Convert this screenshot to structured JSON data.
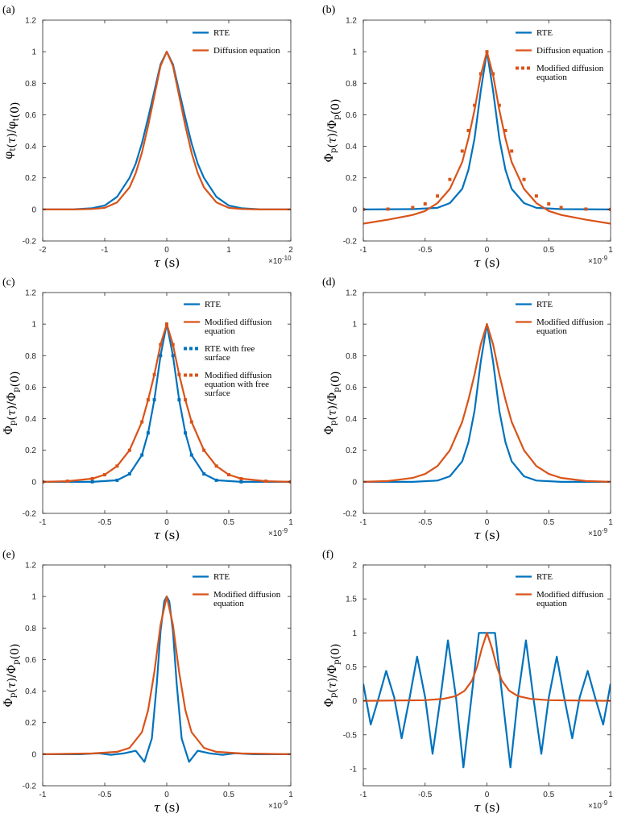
{
  "colors": {
    "blue": "#0072BD",
    "orange": "#D95319",
    "axis": "#262626"
  },
  "chart_data": [
    {
      "panel_label": "(a)",
      "type": "line",
      "xlabel": "τ (s)",
      "ylabel": "φt(τ)/φt(0)",
      "xlim": [
        -2,
        2
      ],
      "ylim": [
        -0.2,
        1.2
      ],
      "xticks": [
        -2,
        -1,
        0,
        1,
        2
      ],
      "xtick_labels": [
        "-2",
        "-1",
        "0",
        "1",
        "2"
      ],
      "yticks": [
        -0.2,
        0,
        0.2,
        0.4,
        0.6,
        0.8,
        1,
        1.2
      ],
      "ytick_labels": [
        "-0.2",
        "0",
        "0.2",
        "0.4",
        "0.6",
        "0.8",
        "1",
        "1.2"
      ],
      "x_multiplier": "×10-10",
      "series": [
        {
          "name": "RTE",
          "color": "blue",
          "style": "solid",
          "x": [
            -2,
            -1.5,
            -1.2,
            -1,
            -0.8,
            -0.6,
            -0.5,
            -0.4,
            -0.3,
            -0.2,
            -0.1,
            0,
            0.1,
            0.2,
            0.3,
            0.4,
            0.5,
            0.6,
            0.8,
            1,
            1.2,
            1.5,
            2
          ],
          "values": [
            0,
            0.001,
            0.008,
            0.025,
            0.08,
            0.2,
            0.29,
            0.42,
            0.58,
            0.75,
            0.92,
            1,
            0.92,
            0.75,
            0.58,
            0.42,
            0.29,
            0.2,
            0.08,
            0.025,
            0.008,
            0.001,
            0
          ]
        },
        {
          "name": "Diffusion equation",
          "color": "orange",
          "style": "solid",
          "x": [
            -2,
            -1.5,
            -1.2,
            -1,
            -0.8,
            -0.6,
            -0.5,
            -0.4,
            -0.3,
            -0.2,
            -0.1,
            0,
            0.1,
            0.2,
            0.3,
            0.4,
            0.5,
            0.6,
            0.8,
            1,
            1.2,
            1.5,
            2
          ],
          "values": [
            0,
            0,
            0.003,
            0.01,
            0.045,
            0.14,
            0.23,
            0.36,
            0.53,
            0.72,
            0.91,
            1,
            0.91,
            0.72,
            0.53,
            0.36,
            0.23,
            0.14,
            0.045,
            0.01,
            0.003,
            0,
            0
          ]
        }
      ]
    },
    {
      "panel_label": "(b)",
      "type": "line",
      "xlabel": "τ (s)",
      "ylabel": "Φp(τ)/Φp(0)",
      "xlim": [
        -1,
        1
      ],
      "ylim": [
        -0.2,
        1.2
      ],
      "xticks": [
        -1,
        -0.5,
        0,
        0.5,
        1
      ],
      "xtick_labels": [
        "-1",
        "-0.5",
        "0",
        "0.5",
        "1"
      ],
      "yticks": [
        -0.2,
        0,
        0.2,
        0.4,
        0.6,
        0.8,
        1,
        1.2
      ],
      "ytick_labels": [
        "-0.2",
        "0",
        "0.2",
        "0.4",
        "0.6",
        "0.8",
        "1",
        "1.2"
      ],
      "x_multiplier": "×10-9",
      "series": [
        {
          "name": "RTE",
          "color": "blue",
          "style": "solid",
          "x": [
            -1,
            -0.6,
            -0.4,
            -0.3,
            -0.2,
            -0.15,
            -0.1,
            -0.05,
            0,
            0.05,
            0.1,
            0.15,
            0.2,
            0.3,
            0.4,
            0.6,
            1
          ],
          "values": [
            0,
            0.002,
            0.01,
            0.04,
            0.13,
            0.25,
            0.45,
            0.75,
            1,
            0.75,
            0.45,
            0.25,
            0.13,
            0.04,
            0.01,
            0.002,
            0
          ]
        },
        {
          "name": "Diffusion equation",
          "color": "orange",
          "style": "solid",
          "x": [
            -1,
            -0.8,
            -0.6,
            -0.5,
            -0.4,
            -0.3,
            -0.2,
            -0.15,
            -0.1,
            -0.05,
            0,
            0.05,
            0.1,
            0.15,
            0.2,
            0.3,
            0.4,
            0.5,
            0.6,
            0.8,
            1
          ],
          "values": [
            -0.09,
            -0.065,
            -0.035,
            -0.01,
            0.04,
            0.13,
            0.3,
            0.45,
            0.63,
            0.85,
            1,
            0.85,
            0.63,
            0.45,
            0.3,
            0.13,
            0.04,
            -0.01,
            -0.035,
            -0.065,
            -0.09
          ]
        },
        {
          "name": "Modified diffusion equation",
          "color": "orange",
          "style": "dotted",
          "x": [
            -1,
            -0.8,
            -0.6,
            -0.5,
            -0.4,
            -0.3,
            -0.2,
            -0.15,
            -0.1,
            -0.05,
            0,
            0.05,
            0.1,
            0.15,
            0.2,
            0.3,
            0.4,
            0.5,
            0.6,
            0.8,
            1
          ],
          "values": [
            0,
            0.002,
            0.012,
            0.035,
            0.085,
            0.19,
            0.37,
            0.5,
            0.66,
            0.86,
            1,
            0.86,
            0.66,
            0.5,
            0.37,
            0.19,
            0.085,
            0.035,
            0.012,
            0.002,
            0
          ]
        }
      ]
    },
    {
      "panel_label": "(c)",
      "type": "line",
      "xlabel": "τ (s)",
      "ylabel": "Φp(τ)/Φp(0)",
      "xlim": [
        -1,
        1
      ],
      "ylim": [
        -0.2,
        1.2
      ],
      "xticks": [
        -1,
        -0.5,
        0,
        0.5,
        1
      ],
      "xtick_labels": [
        "-1",
        "-0.5",
        "0",
        "0.5",
        "1"
      ],
      "yticks": [
        -0.2,
        0,
        0.2,
        0.4,
        0.6,
        0.8,
        1,
        1.2
      ],
      "ytick_labels": [
        "-0.2",
        "0",
        "0.2",
        "0.4",
        "0.6",
        "0.8",
        "1",
        "1.2"
      ],
      "x_multiplier": "×10-9",
      "series": [
        {
          "name": "RTE",
          "color": "blue",
          "style": "solid",
          "x": [
            -1,
            -0.6,
            -0.4,
            -0.3,
            -0.2,
            -0.15,
            -0.1,
            -0.05,
            0,
            0.05,
            0.1,
            0.15,
            0.2,
            0.3,
            0.4,
            0.6,
            1
          ],
          "values": [
            0,
            0,
            0.01,
            0.05,
            0.17,
            0.31,
            0.52,
            0.8,
            1,
            0.8,
            0.52,
            0.31,
            0.17,
            0.05,
            0.01,
            0,
            0
          ]
        },
        {
          "name": "Modified diffusion equation",
          "color": "orange",
          "style": "solid",
          "x": [
            -1,
            -0.8,
            -0.6,
            -0.5,
            -0.4,
            -0.3,
            -0.2,
            -0.15,
            -0.1,
            -0.05,
            0,
            0.05,
            0.1,
            0.15,
            0.2,
            0.3,
            0.4,
            0.5,
            0.6,
            0.8,
            1
          ],
          "values": [
            0,
            0.004,
            0.02,
            0.045,
            0.1,
            0.2,
            0.38,
            0.52,
            0.68,
            0.87,
            1,
            0.87,
            0.68,
            0.52,
            0.38,
            0.2,
            0.1,
            0.045,
            0.02,
            0.004,
            0
          ]
        },
        {
          "name": "RTE with free surface",
          "color": "blue",
          "style": "dotted",
          "x": [
            -1,
            -0.6,
            -0.4,
            -0.3,
            -0.2,
            -0.15,
            -0.1,
            -0.05,
            0,
            0.05,
            0.1,
            0.15,
            0.2,
            0.3,
            0.4,
            0.6,
            1
          ],
          "values": [
            0,
            0,
            0.01,
            0.05,
            0.17,
            0.31,
            0.52,
            0.8,
            1,
            0.8,
            0.52,
            0.31,
            0.17,
            0.05,
            0.01,
            0,
            0
          ]
        },
        {
          "name": "Modified diffusion equation with free surface",
          "color": "orange",
          "style": "dotted",
          "x": [
            -1,
            -0.8,
            -0.6,
            -0.5,
            -0.4,
            -0.3,
            -0.2,
            -0.15,
            -0.1,
            -0.05,
            0,
            0.05,
            0.1,
            0.15,
            0.2,
            0.3,
            0.4,
            0.5,
            0.6,
            0.8,
            1
          ],
          "values": [
            0,
            0.004,
            0.02,
            0.045,
            0.1,
            0.2,
            0.38,
            0.52,
            0.68,
            0.87,
            1,
            0.87,
            0.68,
            0.52,
            0.38,
            0.2,
            0.1,
            0.045,
            0.02,
            0.004,
            0
          ]
        }
      ]
    },
    {
      "panel_label": "(d)",
      "type": "line",
      "xlabel": "τ (s)",
      "ylabel": "Φp(τ)/Φp(0)",
      "xlim": [
        -1,
        1
      ],
      "ylim": [
        -0.2,
        1.2
      ],
      "xticks": [
        -1,
        -0.5,
        0,
        0.5,
        1
      ],
      "xtick_labels": [
        "-1",
        "-0.5",
        "0",
        "0.5",
        "1"
      ],
      "yticks": [
        -0.2,
        0,
        0.2,
        0.4,
        0.6,
        0.8,
        1,
        1.2
      ],
      "ytick_labels": [
        "-0.2",
        "0",
        "0.2",
        "0.4",
        "0.6",
        "0.8",
        "1",
        "1.2"
      ],
      "x_multiplier": "×10-9",
      "series": [
        {
          "name": "RTE",
          "color": "blue",
          "style": "solid",
          "x": [
            -1,
            -0.6,
            -0.4,
            -0.3,
            -0.2,
            -0.15,
            -0.1,
            -0.05,
            0,
            0.05,
            0.1,
            0.15,
            0.2,
            0.3,
            0.4,
            0.6,
            1
          ],
          "values": [
            0,
            0,
            0.008,
            0.035,
            0.13,
            0.25,
            0.45,
            0.76,
            1,
            0.76,
            0.45,
            0.25,
            0.13,
            0.035,
            0.008,
            0,
            0
          ]
        },
        {
          "name": "Modified diffusion equation",
          "color": "orange",
          "style": "solid",
          "x": [
            -1,
            -0.8,
            -0.6,
            -0.5,
            -0.4,
            -0.3,
            -0.2,
            -0.15,
            -0.1,
            -0.05,
            0,
            0.05,
            0.1,
            0.15,
            0.2,
            0.3,
            0.4,
            0.5,
            0.6,
            0.8,
            1
          ],
          "values": [
            0,
            0.005,
            0.025,
            0.05,
            0.1,
            0.2,
            0.38,
            0.52,
            0.68,
            0.87,
            1,
            0.87,
            0.68,
            0.52,
            0.38,
            0.2,
            0.1,
            0.05,
            0.025,
            0.005,
            0
          ]
        }
      ]
    },
    {
      "panel_label": "(e)",
      "type": "line",
      "xlabel": "τ (s)",
      "ylabel": "Φp(τ)/Φp(0)",
      "xlim": [
        -1,
        1
      ],
      "ylim": [
        -0.2,
        1.2
      ],
      "xticks": [
        -1,
        -0.5,
        0,
        0.5,
        1
      ],
      "xtick_labels": [
        "-1",
        "-0.5",
        "0",
        "0.5",
        "1"
      ],
      "yticks": [
        -0.2,
        0,
        0.2,
        0.4,
        0.6,
        0.8,
        1,
        1.2
      ],
      "ytick_labels": [
        "-0.2",
        "0",
        "0.2",
        "0.4",
        "0.6",
        "0.8",
        "1",
        "1.2"
      ],
      "x_multiplier": "×10-9",
      "series": [
        {
          "name": "RTE",
          "color": "blue",
          "style": "solid",
          "x": [
            -1,
            -0.7,
            -0.55,
            -0.45,
            -0.35,
            -0.25,
            -0.18,
            -0.12,
            -0.08,
            -0.05,
            -0.02,
            0,
            0.02,
            0.05,
            0.08,
            0.12,
            0.18,
            0.25,
            0.35,
            0.45,
            0.55,
            0.7,
            1
          ],
          "values": [
            0,
            0,
            0.006,
            -0.004,
            0.005,
            0.022,
            -0.048,
            0.1,
            0.45,
            0.78,
            0.97,
            1,
            0.97,
            0.78,
            0.45,
            0.1,
            -0.048,
            0.022,
            0.005,
            -0.004,
            0.006,
            0,
            0
          ]
        },
        {
          "name": "Modified diffusion equation",
          "color": "orange",
          "style": "solid",
          "x": [
            -1,
            -0.6,
            -0.4,
            -0.3,
            -0.2,
            -0.15,
            -0.1,
            -0.05,
            0,
            0.05,
            0.1,
            0.15,
            0.2,
            0.3,
            0.4,
            0.6,
            1
          ],
          "values": [
            0,
            0.005,
            0.015,
            0.04,
            0.14,
            0.28,
            0.52,
            0.82,
            1,
            0.82,
            0.52,
            0.28,
            0.14,
            0.04,
            0.015,
            0.005,
            0
          ]
        }
      ]
    },
    {
      "panel_label": "(f)",
      "type": "line",
      "xlabel": "τ (s)",
      "ylabel": "Φp(τ)/Φp(0)",
      "xlim": [
        -1,
        1
      ],
      "ylim": [
        -1.25,
        2
      ],
      "xticks": [
        -1,
        -0.5,
        0,
        0.5,
        1
      ],
      "xtick_labels": [
        "-1",
        "-0.5",
        "0",
        "0.5",
        "1"
      ],
      "yticks": [
        -1,
        -0.5,
        0,
        0.5,
        1,
        1.5,
        2
      ],
      "ytick_labels": [
        "-1",
        "-0.5",
        "0",
        "0.5",
        "1",
        "1.5",
        "2"
      ],
      "x_multiplier": "×10-9",
      "series": [
        {
          "name": "RTE",
          "color": "blue",
          "style": "solid",
          "x": [
            -1,
            -0.94,
            -0.875,
            -0.815,
            -0.75,
            -0.69,
            -0.625,
            -0.565,
            -0.5,
            -0.44,
            -0.375,
            -0.315,
            -0.25,
            -0.19,
            -0.125,
            -0.065,
            0,
            0.065,
            0.125,
            0.19,
            0.25,
            0.315,
            0.375,
            0.44,
            0.5,
            0.565,
            0.625,
            0.69,
            0.75,
            0.815,
            0.875,
            0.94,
            1
          ],
          "values": [
            0.25,
            -0.35,
            0.05,
            0.44,
            0.05,
            -0.55,
            0.05,
            0.65,
            0.05,
            -0.78,
            0.05,
            0.89,
            0.05,
            -0.98,
            0.05,
            1.0,
            1.0,
            1.0,
            0.05,
            -0.98,
            0.05,
            0.89,
            0.05,
            -0.78,
            0.05,
            0.65,
            0.05,
            -0.55,
            0.05,
            0.44,
            0.05,
            -0.35,
            0.25
          ]
        },
        {
          "name": "Modified diffusion equation",
          "color": "orange",
          "style": "solid",
          "x": [
            -1,
            -0.5,
            -0.35,
            -0.25,
            -0.18,
            -0.12,
            -0.08,
            -0.04,
            0,
            0.04,
            0.08,
            0.12,
            0.18,
            0.25,
            0.35,
            0.5,
            1
          ],
          "values": [
            0,
            0.01,
            0.03,
            0.07,
            0.15,
            0.3,
            0.5,
            0.78,
            1,
            0.78,
            0.5,
            0.3,
            0.15,
            0.07,
            0.03,
            0.01,
            0
          ]
        }
      ]
    }
  ]
}
